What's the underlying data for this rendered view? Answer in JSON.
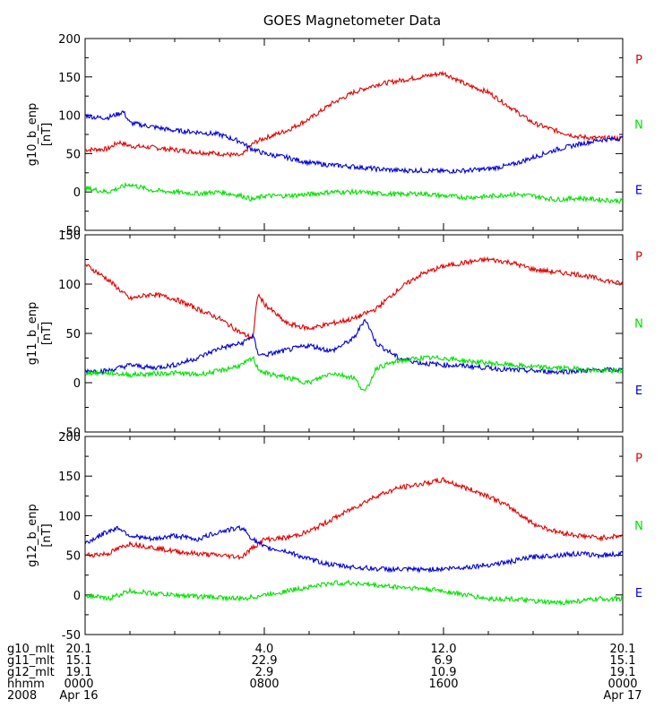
{
  "chart_data": {
    "type": "line",
    "title": "GOES Magnetometer Data",
    "x_range_hours": [
      0,
      24
    ],
    "x_tick_hours": [
      0,
      8,
      16,
      24
    ],
    "series_colors": {
      "P": "#e00000",
      "N": "#00e000",
      "E": "#0000d0"
    },
    "panels": [
      {
        "ylabel": "g10_b_enp",
        "unit": "[nT]",
        "ylim": [
          -50,
          200
        ],
        "yticks": [
          -50,
          0,
          50,
          100,
          150,
          200
        ],
        "legend": [
          "P",
          "N",
          "E"
        ],
        "series": [
          {
            "name": "P",
            "color": "#e00000",
            "x": [
              0,
              1,
              1.5,
              2,
              3,
              4,
              5,
              6,
              7,
              7.3,
              7.6,
              8,
              9,
              10,
              11,
              12,
              12.5,
              13,
              14,
              15,
              16,
              16.5,
              17,
              18,
              19,
              20,
              21,
              22,
              23,
              24
            ],
            "y": [
              55,
              56,
              65,
              60,
              58,
              55,
              52,
              50,
              47,
              58,
              65,
              70,
              80,
              95,
              115,
              130,
              135,
              140,
              145,
              150,
              155,
              148,
              140,
              130,
              110,
              90,
              80,
              72,
              70,
              70
            ]
          },
          {
            "name": "E",
            "color": "#0000d0",
            "x": [
              0,
              0.5,
              1,
              1.5,
              1.7,
              2,
              3,
              4,
              5,
              6,
              7,
              7.3,
              8,
              9,
              10,
              11,
              12,
              13,
              14,
              15,
              16,
              17,
              18,
              19,
              20,
              21,
              22,
              23,
              24
            ],
            "y": [
              100,
              97,
              97,
              102,
              105,
              90,
              85,
              80,
              78,
              75,
              65,
              58,
              50,
              45,
              38,
              35,
              33,
              30,
              28,
              28,
              27,
              28,
              30,
              35,
              45,
              55,
              62,
              68,
              70
            ]
          },
          {
            "name": "N",
            "color": "#00e000",
            "x": [
              0,
              1,
              2,
              3,
              4,
              5,
              6,
              7,
              7.5,
              8,
              9,
              10,
              11,
              12,
              13,
              14,
              15,
              16,
              17,
              18,
              19,
              20,
              21,
              22,
              23,
              24
            ],
            "y": [
              5,
              0,
              10,
              2,
              0,
              -2,
              0,
              -5,
              -10,
              -5,
              -5,
              -3,
              0,
              0,
              -2,
              -3,
              -2,
              -5,
              -7,
              -6,
              -3,
              -5,
              -10,
              -8,
              -10,
              -12
            ]
          }
        ]
      },
      {
        "ylabel": "g11_b_enp",
        "unit": "[nT]",
        "ylim": [
          -50,
          150
        ],
        "yticks": [
          -50,
          0,
          50,
          100,
          150
        ],
        "legend": [
          "P",
          "N",
          "E"
        ],
        "series": [
          {
            "name": "P",
            "color": "#e00000",
            "x": [
              0,
              1,
              2,
              3,
              4,
              5,
              6,
              7,
              7.5,
              7.7,
              8,
              9,
              10,
              11,
              12,
              13,
              14,
              15,
              16,
              17,
              18,
              19,
              20,
              21,
              22,
              23,
              24
            ],
            "y": [
              120,
              105,
              85,
              90,
              85,
              75,
              65,
              50,
              45,
              90,
              80,
              60,
              55,
              60,
              65,
              75,
              95,
              110,
              118,
              122,
              125,
              122,
              115,
              112,
              110,
              105,
              100
            ]
          },
          {
            "name": "E",
            "color": "#0000d0",
            "x": [
              0,
              1,
              2,
              3,
              4,
              5,
              6,
              7,
              7.5,
              7.7,
              8,
              9,
              10,
              11,
              12,
              12.5,
              13,
              14,
              15,
              16,
              17,
              18,
              19,
              20,
              21,
              22,
              23,
              24
            ],
            "y": [
              12,
              12,
              18,
              15,
              18,
              25,
              35,
              40,
              48,
              30,
              28,
              33,
              38,
              32,
              45,
              65,
              40,
              25,
              20,
              18,
              17,
              15,
              13,
              12,
              11,
              12,
              13,
              13
            ]
          },
          {
            "name": "N",
            "color": "#00e000",
            "x": [
              0,
              1,
              2,
              3,
              4,
              5,
              6,
              7,
              7.5,
              7.7,
              8,
              9,
              10,
              11,
              12,
              12.5,
              13,
              14,
              15,
              16,
              17,
              18,
              19,
              20,
              21,
              22,
              23,
              24
            ],
            "y": [
              10,
              10,
              8,
              9,
              10,
              8,
              12,
              18,
              25,
              15,
              10,
              5,
              0,
              10,
              5,
              -10,
              15,
              22,
              25,
              25,
              22,
              20,
              18,
              16,
              15,
              14,
              12,
              12
            ]
          }
        ]
      },
      {
        "ylabel": "g12_b_enp",
        "unit": "[nT]",
        "ylim": [
          -50,
          200
        ],
        "yticks": [
          -50,
          0,
          50,
          100,
          150,
          200
        ],
        "legend": [
          "P",
          "N",
          "E"
        ],
        "series": [
          {
            "name": "P",
            "color": "#e00000",
            "x": [
              0,
              1,
              2,
              3,
              4,
              5,
              6,
              7,
              7.5,
              8,
              9,
              10,
              11,
              12,
              13,
              14,
              15,
              16,
              16.5,
              17,
              18,
              19,
              20,
              21,
              22,
              23,
              24
            ],
            "y": [
              50,
              52,
              65,
              60,
              55,
              52,
              50,
              48,
              60,
              70,
              72,
              80,
              95,
              110,
              125,
              135,
              140,
              145,
              140,
              135,
              125,
              110,
              90,
              80,
              75,
              72,
              75
            ]
          },
          {
            "name": "E",
            "color": "#0000d0",
            "x": [
              0,
              1,
              1.5,
              2,
              3,
              4,
              5,
              6,
              7,
              7.5,
              8,
              9,
              10,
              11,
              12,
              13,
              14,
              15,
              16,
              17,
              18,
              19,
              20,
              21,
              22,
              23,
              24
            ],
            "y": [
              65,
              80,
              85,
              75,
              70,
              75,
              70,
              80,
              85,
              70,
              60,
              55,
              45,
              38,
              35,
              33,
              32,
              32,
              33,
              35,
              38,
              42,
              48,
              50,
              52,
              50,
              52
            ]
          },
          {
            "name": "N",
            "color": "#00e000",
            "x": [
              0,
              1,
              2,
              3,
              4,
              5,
              6,
              7,
              8,
              9,
              10,
              11,
              12,
              13,
              14,
              15,
              16,
              17,
              18,
              19,
              20,
              21,
              22,
              23,
              24
            ],
            "y": [
              0,
              -5,
              5,
              2,
              0,
              -2,
              -3,
              -5,
              0,
              5,
              10,
              15,
              15,
              12,
              10,
              8,
              5,
              0,
              -5,
              -5,
              -8,
              -10,
              -8,
              -5,
              -5
            ]
          }
        ]
      }
    ]
  },
  "footer": {
    "rows": [
      {
        "label": "g10_mlt",
        "values": [
          "20.1",
          "4.0",
          "12.0",
          "20.1"
        ]
      },
      {
        "label": "g11_mlt",
        "values": [
          "15.1",
          "22.9",
          "6.9",
          "15.1"
        ]
      },
      {
        "label": "g12_mlt",
        "values": [
          "19.1",
          "2.9",
          "10.9",
          "19.1"
        ]
      },
      {
        "label": "hhmm",
        "values": [
          "0000",
          "0800",
          "1600",
          "0000"
        ]
      },
      {
        "label": "2008",
        "values": [
          "Apr 16",
          "",
          "",
          "Apr 17"
        ]
      }
    ]
  }
}
